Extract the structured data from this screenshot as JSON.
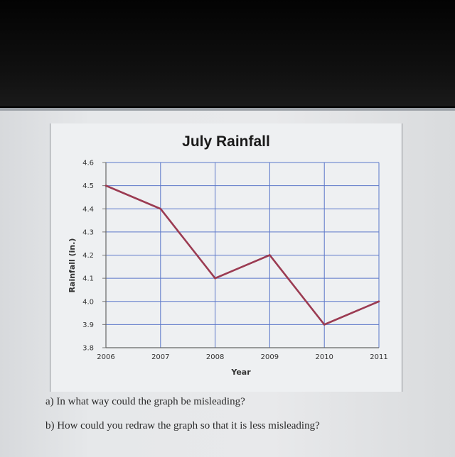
{
  "chart_data": {
    "type": "line",
    "title": "July Rainfall",
    "xlabel": "Year",
    "ylabel": "Rainfall (in.)",
    "x": [
      "2006",
      "2007",
      "2008",
      "2009",
      "2010",
      "2011"
    ],
    "series": [
      {
        "values": [
          4.5,
          4.4,
          4.1,
          4.2,
          3.9,
          4.0
        ],
        "color": "#9b3b52"
      }
    ],
    "y_ticks": [
      "3.8",
      "3.9",
      "4.0",
      "4.1",
      "4.2",
      "4.3",
      "4.4",
      "4.5",
      "4.6"
    ],
    "ylim": [
      3.8,
      4.6
    ],
    "grid": true,
    "grid_color": "#5b77c9"
  },
  "questions": {
    "a": "a) In what way could the graph be misleading?",
    "b": "b) How could you redraw the graph so that it is less misleading?"
  }
}
